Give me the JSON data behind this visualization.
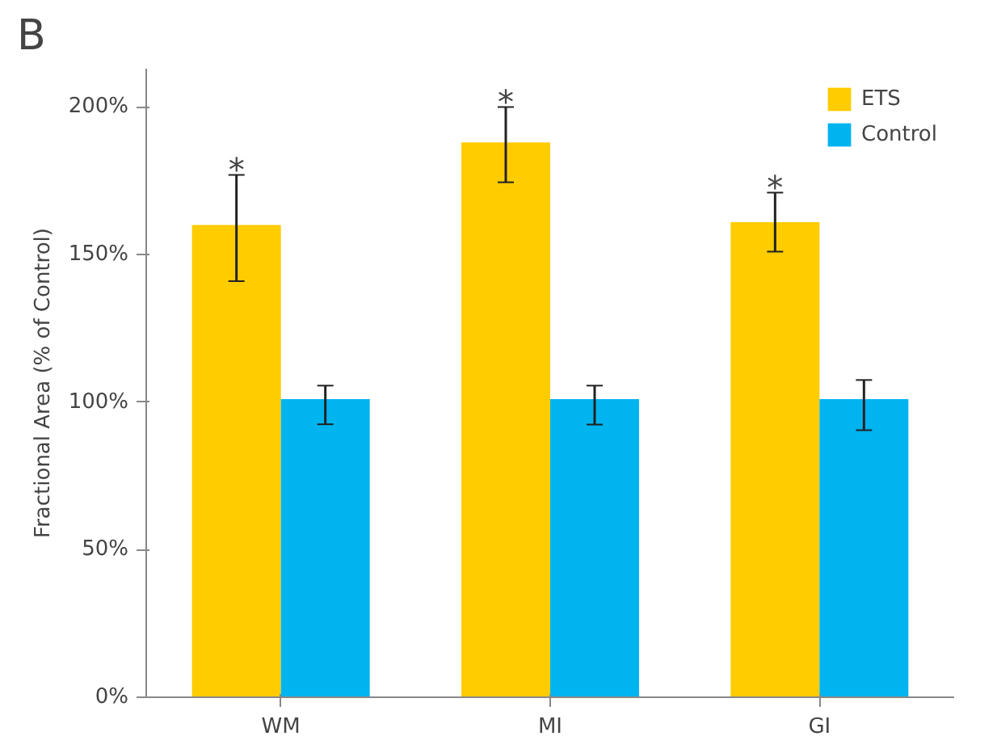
{
  "chart_data": {
    "type": "bar",
    "ylabel": "Fractional Area (% of Control)",
    "categories": [
      "WM",
      "MI",
      "GI"
    ],
    "series": [
      {
        "name": "ETS",
        "color": "#ffcc00",
        "values": [
          160,
          188,
          161
        ],
        "errors": [
          [
            141,
            177
          ],
          [
            174.5,
            200
          ],
          [
            151,
            171
          ]
        ]
      },
      {
        "name": "Control",
        "color": "#00b4f0",
        "values": [
          101,
          101,
          101
        ],
        "errors": [
          [
            92.5,
            105.6
          ],
          [
            92.4,
            105.6
          ],
          [
            90.5,
            107.5
          ]
        ]
      }
    ],
    "ylim": [
      0,
      213
    ],
    "yticks": [
      {
        "value": 0,
        "label": "0%"
      },
      {
        "value": 50,
        "label": "50%"
      },
      {
        "value": 100,
        "label": "100%"
      },
      {
        "value": 150,
        "label": "150%"
      },
      {
        "value": 200,
        "label": "200%"
      }
    ],
    "annotations": [
      "B",
      "*",
      "*",
      "*"
    ],
    "grid": false,
    "legend": "top right"
  }
}
